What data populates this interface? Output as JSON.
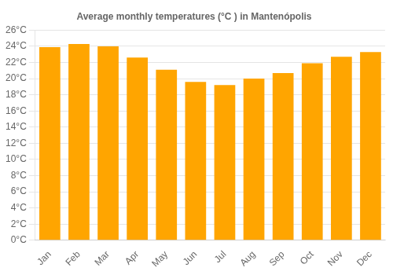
{
  "chart_data": {
    "type": "bar",
    "title": "Average monthly temperatures (°C ) in Mantenópolis",
    "categories": [
      "Jan",
      "Feb",
      "Mar",
      "Apr",
      "May",
      "Jun",
      "Jul",
      "Aug",
      "Sep",
      "Oct",
      "Nov",
      "Dec"
    ],
    "values": [
      23.9,
      24.3,
      24.0,
      22.6,
      21.1,
      19.6,
      19.2,
      20.0,
      20.7,
      21.9,
      22.7,
      23.3
    ],
    "color": "#FFA500",
    "ylim": [
      0,
      26
    ],
    "yticks": [
      {
        "value": 0,
        "label": "0°C"
      },
      {
        "value": 2,
        "label": "2°C"
      },
      {
        "value": 4,
        "label": "4°C"
      },
      {
        "value": 6,
        "label": "6°C"
      },
      {
        "value": 8,
        "label": "8°C"
      },
      {
        "value": 10,
        "label": "10°C"
      },
      {
        "value": 12,
        "label": "12°C"
      },
      {
        "value": 14,
        "label": "14°C"
      },
      {
        "value": 16,
        "label": "16°C"
      },
      {
        "value": 18,
        "label": "18°C"
      },
      {
        "value": 20,
        "label": "20°C"
      },
      {
        "value": 22,
        "label": "22°C"
      },
      {
        "value": 24,
        "label": "24°C"
      },
      {
        "value": 26,
        "label": "26°C"
      }
    ],
    "grid": true
  }
}
